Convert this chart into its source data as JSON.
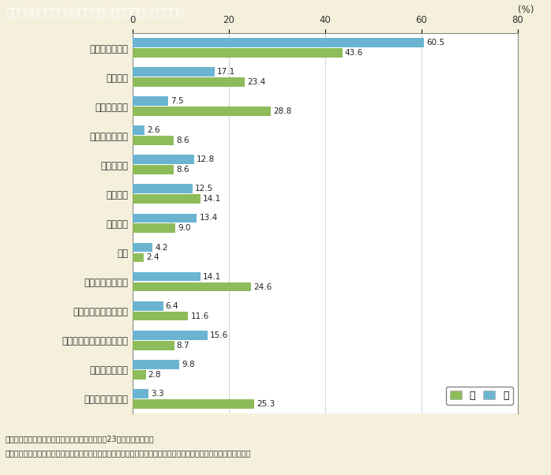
{
  "title": "第１－５－５図　婚姻関係事件における申立ての動機別割合",
  "categories": [
    "性格が合わない",
    "異性関係",
    "暴力を振るう",
    "酒を飲み過ぎる",
    "性的不調和",
    "浪費する",
    "異常性格",
    "病気",
    "精神的に虐待する",
    "家庭を捨てて省みない",
    "家族親族と折り合いが悪い",
    "同居に応じない",
    "生活費を渡さない"
  ],
  "wife_values": [
    43.6,
    23.4,
    28.8,
    8.6,
    8.6,
    14.1,
    9.0,
    2.4,
    24.6,
    11.6,
    8.7,
    2.8,
    25.3
  ],
  "husband_values": [
    60.5,
    17.1,
    7.5,
    2.6,
    12.8,
    12.5,
    13.4,
    4.2,
    14.1,
    6.4,
    15.6,
    9.8,
    3.3
  ],
  "wife_color": "#8fbc5a",
  "husband_color": "#6ab4d2",
  "xlim": [
    0,
    80
  ],
  "xticks": [
    0,
    20,
    40,
    60,
    80
  ],
  "background_color": "#f5f0dc",
  "plot_bg_color": "#ffffff",
  "title_bg_color": "#8b6914",
  "title_text_color": "#ffffff",
  "footer_line1": "（備考）１．最高裁判所「司法統計年報」（平成23年度）より作成。",
  "footer_line2": "　　　　２．申立ての動機は，申立人の言う動機のうち主なものを３個まで挙げる方法で調査し，重複集計したもの。",
  "legend_wife": "妻",
  "legend_husband": "夫"
}
